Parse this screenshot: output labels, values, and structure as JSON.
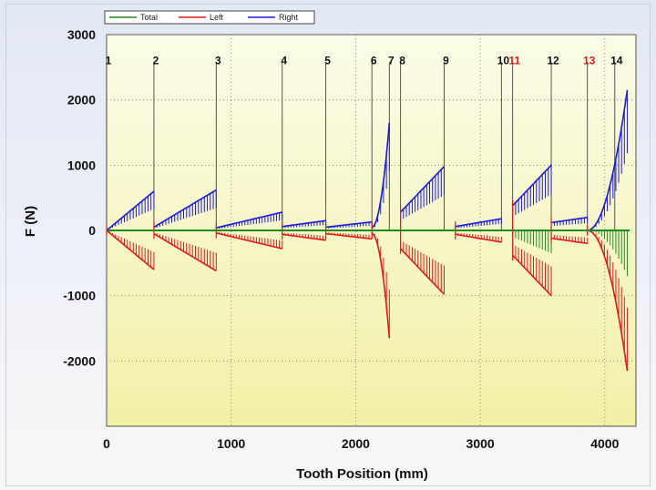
{
  "chart_data": {
    "type": "line",
    "xlabel": "Tooth Position (mm)",
    "ylabel": "F (N)",
    "xlim": [
      0,
      4250
    ],
    "ylim": [
      -3000,
      3000
    ],
    "x_ticks": [
      0,
      1000,
      2000,
      3000,
      4000
    ],
    "y_ticks": [
      3000,
      2000,
      1000,
      0,
      -1000,
      -2000
    ],
    "grid": true,
    "legend_position": "top-left",
    "series": [
      {
        "name": "Total",
        "color": "#1e8a1e"
      },
      {
        "name": "Left",
        "color": "#e01a1a"
      },
      {
        "name": "Right",
        "color": "#1a1adc"
      }
    ],
    "section_markers": [
      {
        "label": "1",
        "x": 0,
        "color": "#111111"
      },
      {
        "label": "2",
        "x": 380,
        "color": "#111111"
      },
      {
        "label": "3",
        "x": 880,
        "color": "#111111"
      },
      {
        "label": "4",
        "x": 1410,
        "color": "#111111"
      },
      {
        "label": "5",
        "x": 1760,
        "color": "#111111"
      },
      {
        "label": "6",
        "x": 2130,
        "color": "#111111"
      },
      {
        "label": "7",
        "x": 2270,
        "color": "#111111"
      },
      {
        "label": "8",
        "x": 2360,
        "color": "#111111"
      },
      {
        "label": "9",
        "x": 2710,
        "color": "#111111"
      },
      {
        "label": "10",
        "x": 3170,
        "color": "#111111"
      },
      {
        "label": "11",
        "x": 3260,
        "color": "#e01a1a"
      },
      {
        "label": "12",
        "x": 3570,
        "color": "#111111"
      },
      {
        "label": "13",
        "x": 3860,
        "color": "#e01a1a"
      },
      {
        "label": "14",
        "x": 4080,
        "color": "#111111"
      }
    ],
    "segments": [
      {
        "x0": 0,
        "x1": 380,
        "right": [
          0,
          600
        ],
        "left": [
          0,
          -600
        ],
        "total": [
          0,
          0
        ],
        "mode": "envelope"
      },
      {
        "x0": 380,
        "x1": 880,
        "right": [
          50,
          620
        ],
        "left": [
          -50,
          -620
        ],
        "total": [
          0,
          0
        ],
        "mode": "envelope"
      },
      {
        "x0": 880,
        "x1": 1410,
        "right": [
          40,
          280
        ],
        "left": [
          -40,
          -280
        ],
        "total": [
          0,
          0
        ],
        "mode": "envelope"
      },
      {
        "x0": 1410,
        "x1": 1760,
        "right": [
          60,
          150
        ],
        "left": [
          -60,
          -150
        ],
        "total": [
          0,
          0
        ],
        "mode": "envelope"
      },
      {
        "x0": 1760,
        "x1": 2130,
        "right": [
          50,
          130
        ],
        "left": [
          -50,
          -130
        ],
        "total": [
          0,
          0
        ],
        "mode": "envelope"
      },
      {
        "x0": 2130,
        "x1": 2270,
        "right": [
          50,
          1650
        ],
        "left": [
          -50,
          -1650
        ],
        "total": [
          0,
          0
        ],
        "mode": "growth"
      },
      {
        "x0": 2360,
        "x1": 2710,
        "right": [
          280,
          980
        ],
        "left": [
          -280,
          -980
        ],
        "total": [
          0,
          0
        ],
        "mode": "envelope"
      },
      {
        "x0": 2800,
        "x1": 3170,
        "right": [
          60,
          180
        ],
        "left": [
          -60,
          -180
        ],
        "total": [
          0,
          0
        ],
        "mode": "envelope"
      },
      {
        "x0": 3260,
        "x1": 3570,
        "right": [
          380,
          1000
        ],
        "left": [
          -380,
          -1000
        ],
        "total": [
          -100,
          -350
        ],
        "mode": "envelope"
      },
      {
        "x0": 3570,
        "x1": 3860,
        "right": [
          120,
          200
        ],
        "left": [
          -120,
          -200
        ],
        "total": [
          0,
          0
        ],
        "mode": "envelope"
      },
      {
        "x0": 3860,
        "x1": 4180,
        "right": [
          0,
          2150
        ],
        "left": [
          0,
          -2150
        ],
        "total": [
          0,
          -700
        ],
        "mode": "growth"
      }
    ]
  }
}
